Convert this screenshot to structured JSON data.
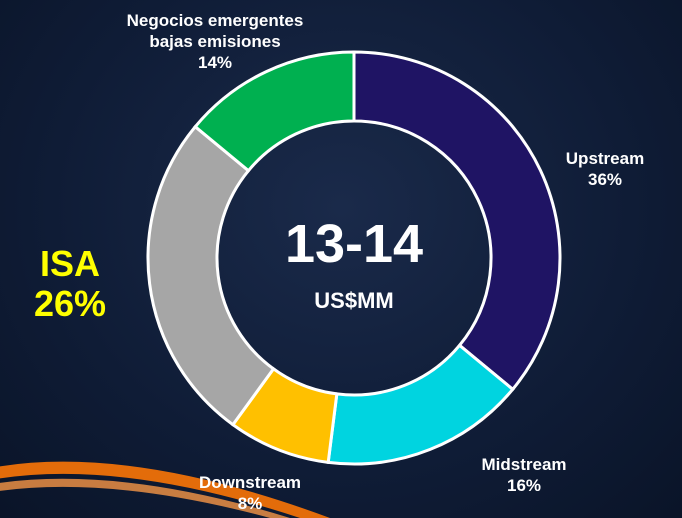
{
  "chart_data": {
    "type": "donut",
    "title": "13-14",
    "subtitle": "US$MM",
    "categories": [
      "Upstream",
      "Midstream",
      "Downstream",
      "ISA",
      "Negocios emergentes bajas emisiones"
    ],
    "values": [
      36,
      16,
      8,
      26,
      14
    ],
    "value_labels": [
      "36%",
      "16%",
      "8%",
      "26%",
      "14%"
    ],
    "colors": [
      "#1f1464",
      "#00d4e0",
      "#ffc000",
      "#a6a6a6",
      "#00b050"
    ]
  }
}
